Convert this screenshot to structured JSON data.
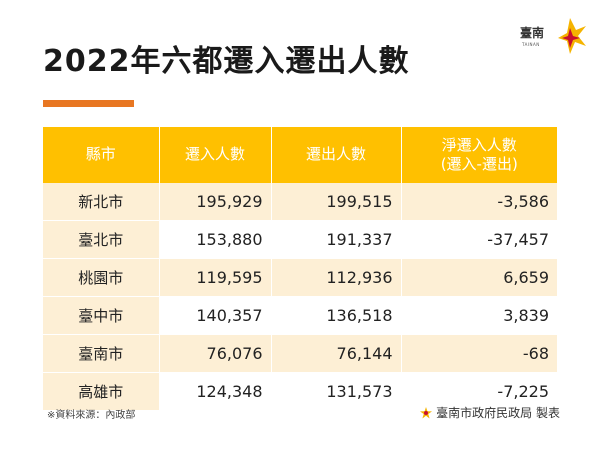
{
  "title": "2022年六都遷入遷出人數",
  "logo": {
    "text": "臺南",
    "subtext": "TAINAN"
  },
  "table": {
    "headers": [
      "縣市",
      "遷入人數",
      "遷出人數",
      "淨遷入人數",
      "(遷入-遷出)"
    ],
    "rows": [
      [
        "新北市",
        "195,929",
        "199,515",
        "-3,586"
      ],
      [
        "臺北市",
        "153,880",
        "191,337",
        "-37,457"
      ],
      [
        "桃園市",
        "119,595",
        "112,936",
        "6,659"
      ],
      [
        "臺中市",
        "140,357",
        "136,518",
        "3,839"
      ],
      [
        "臺南市",
        "76,076",
        "76,144",
        "-68"
      ],
      [
        "高雄市",
        "124,348",
        "131,573",
        "-7,225"
      ]
    ]
  },
  "footer": {
    "source": "※資料來源：內政部",
    "credit": "臺南市政府民政局 製表"
  },
  "colors": {
    "header": "#ffc000",
    "row_alt": "#fdefd5",
    "accent": "#e87722"
  }
}
